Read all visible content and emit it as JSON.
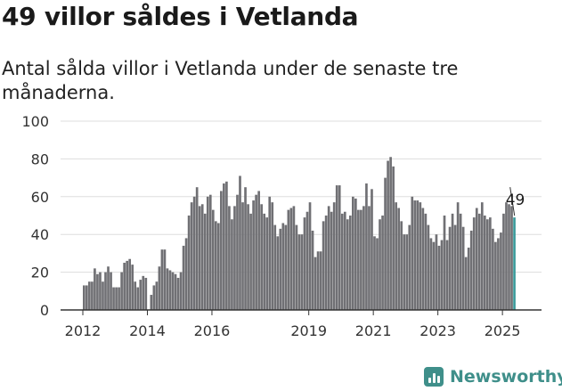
{
  "header": {
    "title": "49 villor såldes i Vetlanda",
    "subtitle": "Antal sålda villor i Vetlanda under de senaste tre månaderna."
  },
  "brand": {
    "name": "Newsworthy",
    "color": "#3f8f8a"
  },
  "chart_data": {
    "type": "bar",
    "title": "",
    "xlabel": "",
    "ylabel": "",
    "ylim": [
      0,
      100
    ],
    "yticks": [
      0,
      20,
      40,
      60,
      80,
      100
    ],
    "xticks": [
      "2012",
      "2014",
      "2016",
      "2019",
      "2021",
      "2023",
      "2025"
    ],
    "grid": true,
    "bar_color": "#707074",
    "highlight_color": "#3a9a9a",
    "highlight_label": "49",
    "series": [
      {
        "values": [
          13,
          13,
          15,
          15,
          22,
          19,
          20,
          15,
          20,
          23,
          20,
          12,
          12,
          12,
          20,
          25,
          26,
          27,
          24,
          15,
          12,
          16,
          18,
          17,
          null,
          8,
          13,
          15,
          23,
          32,
          32,
          22,
          21,
          20,
          19,
          17,
          20,
          34,
          38,
          50,
          57,
          60,
          65,
          55,
          56,
          51,
          60,
          61,
          53,
          47,
          46,
          63,
          67,
          68,
          55,
          48,
          55,
          61,
          71,
          57,
          65,
          56,
          51,
          58,
          61,
          63,
          56,
          51,
          49,
          60,
          57,
          45,
          39,
          43,
          46,
          45,
          53,
          54,
          55,
          45,
          40,
          40,
          49,
          52,
          57,
          42,
          28,
          31,
          31,
          47,
          50,
          55,
          52,
          57,
          66,
          66,
          51,
          52,
          48,
          50,
          60,
          59,
          53,
          53,
          55,
          67,
          55,
          64,
          39,
          38,
          48,
          50,
          70,
          79,
          81,
          76,
          57,
          54,
          47,
          40,
          40,
          45,
          60,
          58,
          58,
          57,
          54,
          51,
          45,
          38,
          36,
          40,
          34,
          37,
          50,
          37,
          44,
          51,
          45,
          57,
          51,
          44,
          28,
          33,
          42,
          49,
          54,
          51,
          57,
          50,
          48,
          49,
          43,
          36,
          38,
          41,
          51,
          57,
          56,
          55,
          49
        ]
      }
    ]
  }
}
